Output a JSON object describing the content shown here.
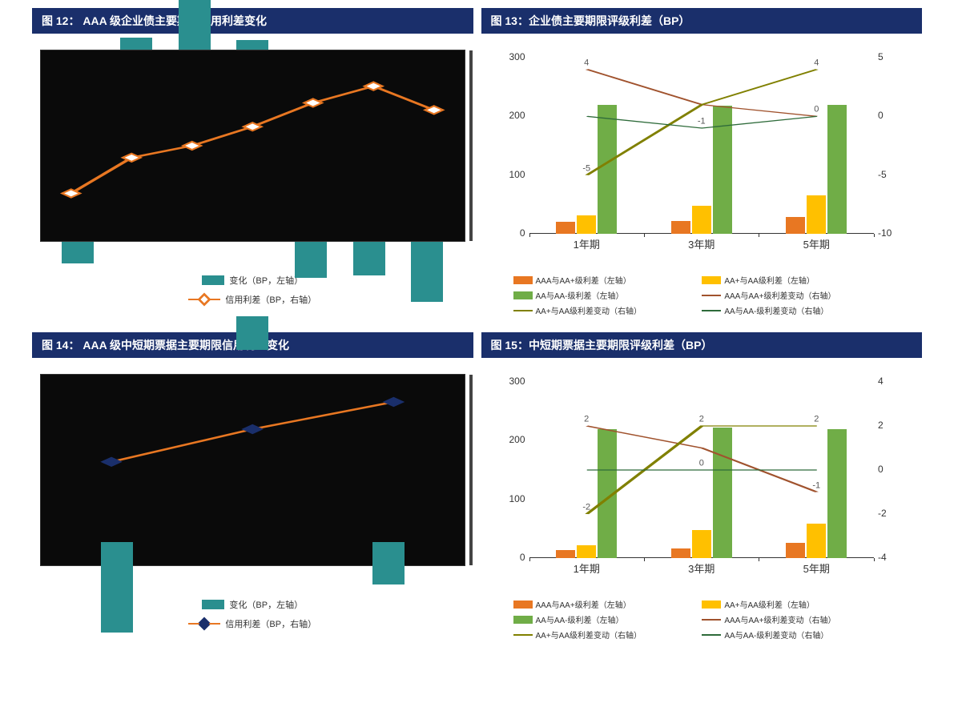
{
  "colors": {
    "title_bg": "#1a2f6b",
    "teal": "#2a8f8f",
    "orange_line": "#e87722",
    "navy_marker": "#1a2f6b",
    "bar_orange": "#e87722",
    "bar_yellow": "#ffc000",
    "bar_green": "#70ad47",
    "line_brown": "#a0522d",
    "line_olive": "#808000",
    "line_darkgreen": "#2e6b3a"
  },
  "chart12": {
    "title": "图 12：  AAA 级企业债主要期限信用利差变化",
    "type": "bar+line",
    "bar_color": "#2a8f8f",
    "line_color": "#e87722",
    "marker_border": "#e87722",
    "n": 7,
    "bar_values": [
      -18,
      10,
      60,
      8,
      -30,
      -28,
      -50
    ],
    "line_values": [
      20,
      35,
      40,
      48,
      58,
      65,
      55
    ],
    "y_range_bar": [
      -80,
      80
    ],
    "y_range_line": [
      0,
      80
    ],
    "legend_bar": "变化（BP，左轴）",
    "legend_line": "信用利差（BP，右轴）"
  },
  "chart13": {
    "title": "图 13：企业债主要期限评级利差（BP）",
    "type": "grouped-bar+line-dual-axis",
    "categories": [
      "1年期",
      "3年期",
      "5年期"
    ],
    "left_axis": {
      "min": 0,
      "max": 300,
      "ticks": [
        0,
        100,
        200,
        300
      ]
    },
    "right_axis": {
      "min": -10,
      "max": 5,
      "ticks": [
        -10,
        -5,
        0,
        5
      ]
    },
    "bars": {
      "series": [
        {
          "name": "AAA与AA+级利差（左轴）",
          "color": "#e87722",
          "values": [
            20,
            22,
            28
          ]
        },
        {
          "name": "AA+与AA级利差（左轴）",
          "color": "#ffc000",
          "values": [
            32,
            48,
            65
          ]
        },
        {
          "name": "AA与AA-级利差（左轴）",
          "color": "#70ad47",
          "values": [
            220,
            218,
            220
          ]
        }
      ]
    },
    "lines": {
      "series": [
        {
          "name": "AAA与AA+级利差变动（右轴）",
          "color": "#a0522d",
          "values": [
            4,
            1,
            0
          ],
          "labels": [
            "4",
            "",
            "0"
          ]
        },
        {
          "name": "AA+与AA级利差变动（右轴）",
          "color": "#808000",
          "values": [
            -5,
            1,
            4
          ],
          "labels": [
            "-5",
            "",
            "4"
          ]
        },
        {
          "name": "AA与AA-级利差变动（右轴）",
          "color": "#2e6b3a",
          "values": [
            0,
            -1,
            0
          ],
          "labels": [
            "",
            "-1",
            ""
          ]
        }
      ]
    }
  },
  "chart14": {
    "title": "图 14：  AAA 级中短期票据主要期限信用利差变化",
    "type": "bar+line",
    "bar_color": "#2a8f8f",
    "line_color": "#e87722",
    "marker_border": "#1a2f6b",
    "n": 3,
    "bar_values": [
      -75,
      28,
      -35
    ],
    "line_values": [
      38,
      50,
      60
    ],
    "y_range_bar": [
      -100,
      60
    ],
    "y_range_line": [
      0,
      70
    ],
    "legend_bar": "变化（BP，左轴）",
    "legend_line": "信用利差（BP，右轴）"
  },
  "chart15": {
    "title": "图 15：中短期票据主要期限评级利差（BP）",
    "type": "grouped-bar+line-dual-axis",
    "categories": [
      "1年期",
      "3年期",
      "5年期"
    ],
    "left_axis": {
      "min": 0,
      "max": 300,
      "ticks": [
        0,
        100,
        200,
        300
      ]
    },
    "right_axis": {
      "min": -4,
      "max": 4,
      "ticks": [
        -4,
        -2,
        0,
        2,
        4
      ]
    },
    "bars": {
      "series": [
        {
          "name": "AAA与AA+级利差（左轴）",
          "color": "#e87722",
          "values": [
            14,
            16,
            26
          ]
        },
        {
          "name": "AA+与AA级利差（左轴）",
          "color": "#ffc000",
          "values": [
            22,
            48,
            58
          ]
        },
        {
          "name": "AA与AA-级利差（左轴）",
          "color": "#70ad47",
          "values": [
            220,
            222,
            220
          ]
        }
      ]
    },
    "lines": {
      "series": [
        {
          "name": "AAA与AA+级利差变动（右轴）",
          "color": "#a0522d",
          "values": [
            2,
            1,
            -1
          ],
          "labels": [
            "2",
            "",
            "-1"
          ]
        },
        {
          "name": "AA+与AA级利差变动（右轴）",
          "color": "#808000",
          "values": [
            -2,
            2,
            2
          ],
          "labels": [
            "-2",
            "2",
            "2"
          ]
        },
        {
          "name": "AA与AA-级利差变动（右轴）",
          "color": "#2e6b3a",
          "values": [
            0,
            0,
            0
          ],
          "labels": [
            "",
            "0",
            ""
          ]
        }
      ]
    }
  }
}
